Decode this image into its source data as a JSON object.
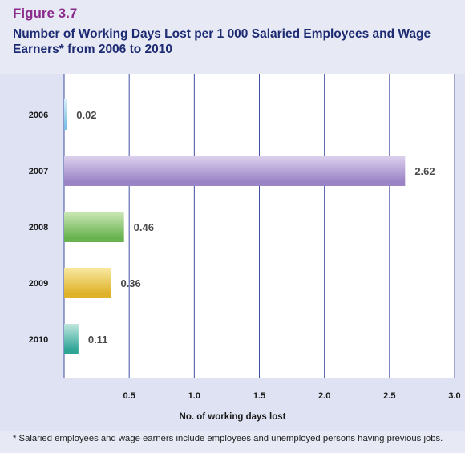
{
  "figure_label": "Figure 3.7",
  "title": "Number of Working Days Lost per 1 000 Salaried Employees and Wage Earners* from 2006 to 2010",
  "footnote": "* Salaried employees and wage earners include employees and unemployed persons having previous jobs.",
  "chart_data": {
    "type": "bar",
    "orientation": "horizontal",
    "categories": [
      "2006",
      "2007",
      "2008",
      "2009",
      "2010"
    ],
    "values": [
      0.02,
      2.62,
      0.46,
      0.36,
      0.11
    ],
    "value_labels": [
      "0.02",
      "2.62",
      "0.46",
      "0.36",
      "0.11"
    ],
    "xlabel": "No. of working days lost",
    "ylabel": "",
    "xlim": [
      0,
      3.0
    ],
    "xticks": [
      0.5,
      1.0,
      1.5,
      2.0,
      2.5,
      3.0
    ],
    "xtick_labels": [
      "0.5",
      "1.0",
      "1.5",
      "2.0",
      "2.5",
      "3.0"
    ],
    "grid": "vertical",
    "legend": "none",
    "bar_colors": [
      [
        "#d6eef9",
        "#7fc1e6"
      ],
      [
        "#ddd2ee",
        "#9b84c6"
      ],
      [
        "#cde9b8",
        "#68b34f"
      ],
      [
        "#f8e9a0",
        "#dfb22a"
      ],
      [
        "#bfe6df",
        "#2fa596"
      ]
    ]
  }
}
